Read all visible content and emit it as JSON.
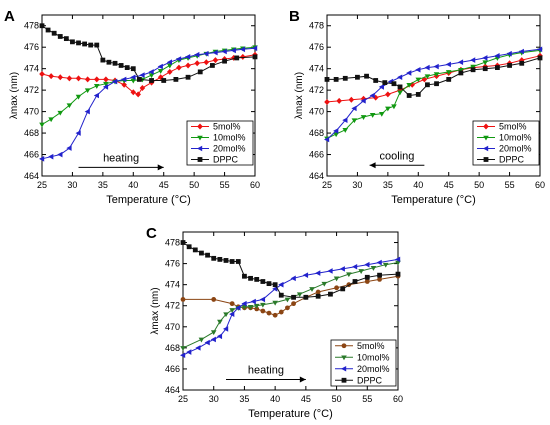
{
  "chart_data": [
    {
      "type": "line",
      "panel_label": "A",
      "xlabel": "Temperature (°C)",
      "ylabel": "λmax (nm)",
      "xlim": [
        25,
        60
      ],
      "ylim": [
        464,
        479
      ],
      "xticks": [
        "25",
        "30",
        "35",
        "40",
        "45",
        "50",
        "55",
        "60"
      ],
      "yticks": [
        "464",
        "466",
        "468",
        "470",
        "472",
        "474",
        "476",
        "478"
      ],
      "annotation": "heating",
      "arrow": {
        "from": [
          31,
          464.8
        ],
        "to": [
          45,
          464.8
        ]
      },
      "legend_position": "bottom-right",
      "series": [
        {
          "name": "5mol%",
          "color": "#ee1111",
          "marker": "diamond",
          "x": [
            25,
            26.5,
            28,
            29.5,
            31,
            32.5,
            34,
            35.5,
            37,
            38.5,
            40,
            40.8,
            41.5,
            43,
            44.5,
            46,
            47.5,
            49,
            50.5,
            52,
            53.5,
            55,
            56.5,
            58,
            60
          ],
          "y": [
            473.5,
            473.3,
            473.2,
            473.1,
            473.1,
            473.0,
            473.0,
            473.0,
            472.9,
            472.5,
            471.8,
            471.6,
            472.2,
            472.7,
            473.2,
            473.7,
            474.1,
            474.3,
            474.5,
            474.6,
            474.8,
            474.9,
            475.0,
            475.1,
            475.3
          ]
        },
        {
          "name": "10mol%",
          "color": "#119911",
          "marker": "triangle-down",
          "x": [
            25,
            26.5,
            28,
            29.5,
            31,
            32.5,
            34,
            35.5,
            37,
            38.5,
            40,
            41.5,
            43,
            44.5,
            46,
            47.5,
            49,
            50.5,
            52,
            53.5,
            55,
            56.5,
            58,
            60
          ],
          "y": [
            468.8,
            469.3,
            469.9,
            470.6,
            471.4,
            472.0,
            472.4,
            472.6,
            472.8,
            472.9,
            472.9,
            473.0,
            473.4,
            473.8,
            474.3,
            474.8,
            475.0,
            475.2,
            475.4,
            475.6,
            475.7,
            475.8,
            475.9,
            476.0
          ]
        },
        {
          "name": "20mol%",
          "color": "#2222cc",
          "marker": "triangle-left",
          "x": [
            25,
            26.5,
            28,
            29.5,
            31,
            32.5,
            34,
            35.5,
            37,
            38.5,
            40,
            41.5,
            43,
            44.5,
            46,
            47.5,
            49,
            50.5,
            52,
            53.5,
            55,
            56.5,
            58,
            60
          ],
          "y": [
            465.6,
            465.8,
            466.0,
            466.6,
            468.0,
            470.0,
            471.5,
            472.3,
            472.8,
            473.0,
            473.2,
            473.4,
            473.7,
            474.2,
            474.6,
            474.9,
            475.1,
            475.3,
            475.4,
            475.5,
            475.6,
            475.7,
            475.8,
            475.9
          ]
        },
        {
          "name": "DPPC",
          "color": "#111111",
          "marker": "square",
          "x": [
            25,
            26,
            27,
            28,
            29,
            30,
            31,
            32,
            33,
            34,
            35,
            36,
            37,
            38,
            39,
            40,
            41,
            43,
            45,
            47,
            49,
            51,
            53,
            55,
            57,
            60
          ],
          "y": [
            478.0,
            477.6,
            477.3,
            477.0,
            476.8,
            476.5,
            476.4,
            476.3,
            476.2,
            476.2,
            474.8,
            474.6,
            474.5,
            474.3,
            474.1,
            474.0,
            473.0,
            472.9,
            472.9,
            473.0,
            473.2,
            473.7,
            474.3,
            474.7,
            475.0,
            475.1
          ]
        }
      ]
    },
    {
      "type": "line",
      "panel_label": "B",
      "xlabel": "Temperature (°C)",
      "ylabel": "λmax (nm)",
      "xlim": [
        25,
        60
      ],
      "ylim": [
        464,
        479
      ],
      "xticks": [
        "25",
        "30",
        "35",
        "40",
        "45",
        "50",
        "55",
        "60"
      ],
      "yticks": [
        "464",
        "466",
        "468",
        "470",
        "472",
        "474",
        "476",
        "478"
      ],
      "annotation": "cooling",
      "arrow": {
        "from": [
          41,
          465.0
        ],
        "to": [
          32,
          465.0
        ]
      },
      "legend_position": "bottom-right",
      "series": [
        {
          "name": "5mol%",
          "color": "#ee1111",
          "marker": "diamond",
          "x": [
            25,
            27,
            29,
            31,
            33,
            35,
            37,
            39,
            41,
            43,
            45,
            47,
            49,
            51,
            53,
            55,
            57,
            60
          ],
          "y": [
            470.9,
            471.0,
            471.1,
            471.2,
            471.3,
            471.6,
            472.0,
            472.5,
            473.0,
            473.3,
            473.6,
            473.9,
            474.1,
            474.2,
            474.3,
            474.5,
            474.8,
            475.2
          ]
        },
        {
          "name": "10mol%",
          "color": "#119911",
          "marker": "triangle-down",
          "x": [
            25,
            26.5,
            28,
            29.5,
            31,
            32.5,
            34,
            35,
            36,
            37,
            38.5,
            40,
            41.5,
            43,
            45,
            47,
            49,
            51,
            53,
            55,
            57,
            60
          ],
          "y": [
            467.5,
            467.9,
            468.3,
            469.2,
            469.5,
            469.7,
            469.8,
            470.3,
            470.5,
            471.8,
            472.5,
            473.0,
            473.3,
            473.5,
            473.7,
            473.9,
            474.2,
            474.6,
            475.0,
            475.3,
            475.5,
            475.7
          ]
        },
        {
          "name": "20mol%",
          "color": "#2222cc",
          "marker": "triangle-left",
          "x": [
            25,
            26.5,
            28,
            29.5,
            31,
            32.5,
            34,
            35.5,
            37,
            38.5,
            40,
            41.5,
            43,
            45,
            47,
            49,
            51,
            53,
            55,
            57,
            60
          ],
          "y": [
            467.4,
            468.2,
            469.2,
            470.3,
            471.0,
            471.5,
            472.3,
            472.8,
            473.2,
            473.6,
            473.9,
            474.1,
            474.2,
            474.4,
            474.6,
            474.8,
            475.0,
            475.2,
            475.4,
            475.6,
            475.8
          ]
        },
        {
          "name": "DPPC",
          "color": "#111111",
          "marker": "square",
          "x": [
            25,
            26.5,
            28,
            30,
            31.5,
            33,
            34.5,
            36,
            37,
            38.5,
            40,
            41.5,
            43,
            45,
            47,
            49,
            51,
            53,
            55,
            57,
            60
          ],
          "y": [
            473.0,
            473.0,
            473.1,
            473.2,
            473.3,
            472.9,
            472.7,
            472.6,
            472.3,
            471.5,
            471.6,
            472.5,
            472.6,
            473.0,
            473.6,
            473.9,
            474.0,
            474.1,
            474.3,
            474.5,
            475.0
          ]
        }
      ]
    },
    {
      "type": "line",
      "panel_label": "C",
      "xlabel": "Temperature (°C)",
      "ylabel": "λmax (nm)",
      "xlim": [
        25,
        60
      ],
      "ylim": [
        464,
        479
      ],
      "xticks": [
        "25",
        "30",
        "35",
        "40",
        "45",
        "50",
        "55",
        "60"
      ],
      "yticks": [
        "464",
        "466",
        "468",
        "470",
        "472",
        "474",
        "476",
        "478"
      ],
      "annotation": "heating",
      "arrow": {
        "from": [
          32,
          465.0
        ],
        "to": [
          45,
          465.0
        ]
      },
      "legend_position": "bottom-right",
      "series": [
        {
          "name": "5mol%",
          "color": "#8b4513",
          "marker": "circle",
          "x": [
            25,
            30,
            33,
            34,
            35,
            36,
            37,
            38,
            39,
            40,
            41,
            42,
            43,
            45,
            47,
            50,
            52,
            55,
            57,
            60
          ],
          "y": [
            472.6,
            472.6,
            472.2,
            471.9,
            471.8,
            471.8,
            471.7,
            471.5,
            471.3,
            471.1,
            471.4,
            471.8,
            472.2,
            472.8,
            473.3,
            473.7,
            474.0,
            474.3,
            474.5,
            474.8
          ]
        },
        {
          "name": "10mol%",
          "color": "#2a7a2a",
          "marker": "triangle-down",
          "x": [
            25,
            28,
            30,
            31,
            32,
            33,
            34,
            35,
            36,
            37,
            38,
            40,
            42,
            44,
            46,
            48,
            50,
            52,
            54,
            56,
            58,
            60
          ],
          "y": [
            468.0,
            468.8,
            469.5,
            470.5,
            471.2,
            471.6,
            471.8,
            471.9,
            471.9,
            472.0,
            472.1,
            472.3,
            472.6,
            473.1,
            473.6,
            474.1,
            474.6,
            475.0,
            475.3,
            475.6,
            475.9,
            476.1
          ]
        },
        {
          "name": "20mol%",
          "color": "#2222cc",
          "marker": "triangle-left",
          "x": [
            25,
            26,
            27.5,
            29,
            30,
            31,
            32,
            33,
            34,
            35,
            36.5,
            38,
            40,
            41,
            43,
            45,
            47,
            49,
            51,
            53,
            55,
            57,
            60
          ],
          "y": [
            467.3,
            467.6,
            468.0,
            468.5,
            468.8,
            469.1,
            469.8,
            471.2,
            471.8,
            472.2,
            472.4,
            472.6,
            473.6,
            474.0,
            474.6,
            474.9,
            475.1,
            475.3,
            475.5,
            475.7,
            475.9,
            476.1,
            476.4
          ]
        },
        {
          "name": "DPPC",
          "color": "#111111",
          "marker": "square",
          "x": [
            25,
            26,
            27,
            28,
            29,
            30,
            31,
            32,
            33,
            34,
            35,
            36,
            37,
            38,
            39,
            40,
            41,
            43,
            45,
            47,
            49,
            51,
            53,
            55,
            57,
            60
          ],
          "y": [
            478.0,
            477.6,
            477.3,
            477.0,
            476.8,
            476.5,
            476.4,
            476.3,
            476.2,
            476.2,
            474.8,
            474.6,
            474.5,
            474.3,
            474.1,
            474.0,
            473.0,
            472.8,
            472.8,
            472.9,
            473.1,
            473.6,
            474.3,
            474.7,
            474.9,
            475.0
          ]
        }
      ]
    }
  ]
}
